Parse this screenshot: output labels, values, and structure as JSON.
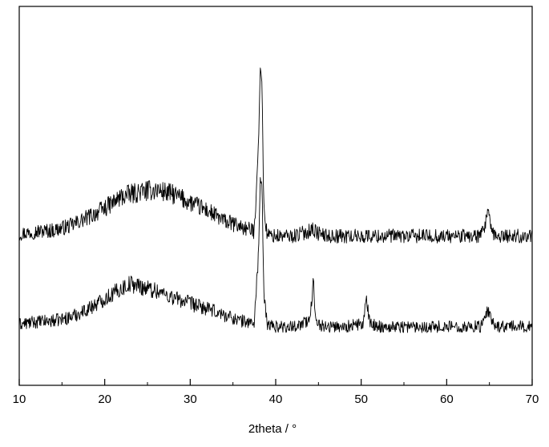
{
  "chart_data": {
    "type": "line",
    "title": "",
    "xlabel": "2theta /  °",
    "ylabel": "",
    "xlim": [
      10,
      70
    ],
    "xticks": [
      10,
      20,
      30,
      40,
      50,
      60,
      70
    ],
    "yticks_shown": false,
    "grid": false,
    "legend": "none",
    "line_color": "#000000",
    "series": [
      {
        "x": [
          10,
          12,
          14,
          16,
          18,
          20,
          22,
          24,
          26,
          28,
          30,
          32,
          34,
          36,
          37.5,
          38.0,
          38.2,
          38.4,
          38.6,
          39,
          40,
          42,
          43.8,
          44.2,
          44.8,
          46,
          48,
          50,
          52,
          54,
          56,
          58,
          60,
          62,
          64,
          64.5,
          64.8,
          65.1,
          65.5,
          66,
          68,
          70
        ],
        "y": [
          18,
          20,
          21,
          25,
          32,
          40,
          50,
          54,
          56,
          52,
          45,
          38,
          29,
          24,
          20,
          100,
          160,
          150,
          40,
          17,
          16,
          16,
          20,
          23,
          19,
          16,
          16,
          16,
          16,
          16,
          16,
          16,
          16,
          16,
          16,
          23,
          43,
          23,
          16,
          16,
          16,
          16
        ]
      },
      {
        "x": [
          10,
          12,
          14,
          16,
          18,
          20,
          22,
          23,
          24,
          26,
          28,
          30,
          32,
          34,
          36,
          37.5,
          38.0,
          38.2,
          38.4,
          38.6,
          39,
          40,
          42,
          44.0,
          44.4,
          44.7,
          45.2,
          46,
          48,
          50.2,
          50.6,
          51.0,
          52,
          54,
          56,
          58,
          60,
          62,
          64,
          64.5,
          64.8,
          65.3,
          66,
          68,
          70
        ],
        "y": [
          5,
          7,
          8,
          11,
          18,
          27,
          36,
          40,
          38,
          34,
          28,
          23,
          18,
          13,
          8,
          6,
          70,
          130,
          125,
          30,
          5,
          3,
          3,
          8,
          40,
          12,
          4,
          3,
          3,
          5,
          25,
          6,
          3,
          3,
          3,
          3,
          3,
          3,
          3,
          8,
          18,
          6,
          3,
          3,
          3
        ]
      }
    ]
  }
}
